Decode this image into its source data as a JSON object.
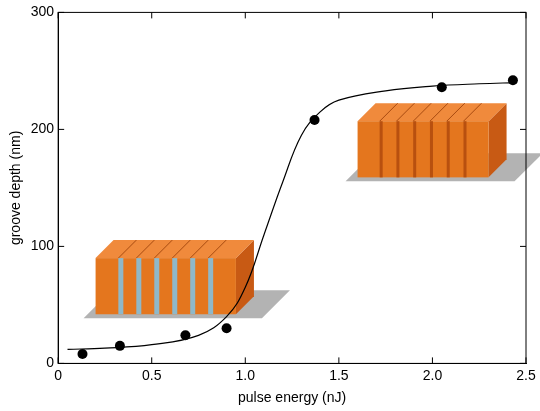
{
  "chart_data": {
    "type": "scatter",
    "x_label": "pulse energy (nJ)",
    "y_label": "groove depth (nm)",
    "xlim": [
      0,
      2.5
    ],
    "xticks": [
      0,
      0.5,
      {
        "value": 1,
        "label": "1.0"
      },
      1.5,
      {
        "value": 2,
        "label": "2.0"
      },
      2.5
    ],
    "ylim": [
      0,
      300
    ],
    "yticks": [
      0,
      100,
      200,
      300
    ],
    "grid": false,
    "series": [
      {
        "type": "scatter",
        "marker": "circle",
        "color": "#000000",
        "x": [
          0.13,
          0.33,
          0.68,
          0.9,
          1.37,
          2.05,
          2.43
        ],
        "values": [
          8,
          15,
          24,
          30,
          208,
          236,
          242
        ]
      },
      {
        "type": "line",
        "line_style": "solid",
        "color": "#000000",
        "x": [
          0.05,
          0.25,
          0.5,
          0.75,
          0.9,
          1.0,
          1.1,
          1.2,
          1.3,
          1.4,
          1.5,
          1.75,
          2.0,
          2.25,
          2.45
        ],
        "values": [
          12,
          13,
          16,
          24,
          40,
          65,
          110,
          155,
          195,
          215,
          225,
          233,
          237,
          239,
          240
        ]
      }
    ]
  }
}
